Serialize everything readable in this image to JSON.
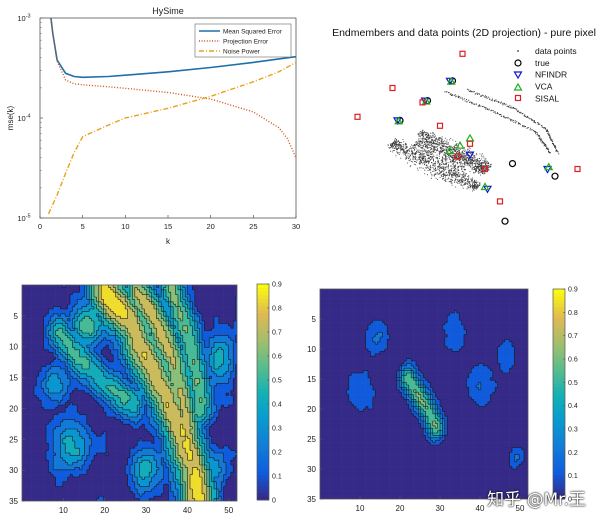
{
  "chart_data": [
    {
      "type": "line",
      "title": "HySime",
      "xlabel": "k",
      "ylabel": "mse(k)",
      "xlim": [
        0,
        30
      ],
      "ylim": [
        1e-05,
        0.001
      ],
      "yscale": "log",
      "xticks": [
        "0",
        "5",
        "10",
        "15",
        "20",
        "25",
        "30"
      ],
      "yticks": [
        {
          "base": "10",
          "exp": "-3",
          "v": 0.001
        },
        {
          "base": "10",
          "exp": "-4",
          "v": 0.0001
        },
        {
          "base": "10",
          "exp": "-5",
          "v": 1e-05
        }
      ],
      "legend_position": "top-right",
      "series": [
        {
          "name": "Mean Squared Error",
          "color": "#1f6fa8",
          "dash": "solid",
          "x": [
            1,
            1.5,
            2,
            3,
            4,
            5,
            8,
            10,
            15,
            20,
            25,
            28,
            30
          ],
          "y": [
            0.0016,
            0.0007,
            0.00038,
            0.00028,
            0.00026,
            0.000255,
            0.00026,
            0.000268,
            0.00029,
            0.00032,
            0.00036,
            0.00039,
            0.00041
          ]
        },
        {
          "name": "Projection Error",
          "color": "#d0501a",
          "dash": "dot",
          "x": [
            1,
            1.5,
            2,
            3,
            4,
            5,
            8,
            10,
            15,
            20,
            25,
            28,
            29,
            30
          ],
          "y": [
            0.0016,
            0.0007,
            0.00037,
            0.00024,
            0.00022,
            0.000215,
            0.000205,
            0.000198,
            0.00018,
            0.000155,
            0.000115,
            8e-05,
            6.2e-05,
            4e-05
          ]
        },
        {
          "name": "Noise Power",
          "color": "#e8a21a",
          "dash": "dashdot",
          "x": [
            1,
            2,
            3,
            4,
            5,
            8,
            10,
            15,
            20,
            25,
            28,
            30
          ],
          "y": [
            1.1e-05,
            1.7e-05,
            2.8e-05,
            4.5e-05,
            6.5e-05,
            8.5e-05,
            0.0001,
            0.000125,
            0.000165,
            0.00023,
            0.00029,
            0.00036
          ]
        }
      ]
    },
    {
      "type": "scatter",
      "title": "Endmembers and data points (2D projection) - pure pixel",
      "legend_position": "top-right",
      "xlim": [
        0,
        1
      ],
      "ylim": [
        0,
        1
      ],
      "data_points": {
        "name": "data points",
        "color": "#3a3a3a",
        "clusters": [
          {
            "from": [
              0.2,
              0.5
            ],
            "to": [
              0.55,
              0.25
            ],
            "width": 0.07,
            "n": 900
          },
          {
            "from": [
              0.32,
              0.56
            ],
            "to": [
              0.58,
              0.33
            ],
            "width": 0.06,
            "n": 600
          },
          {
            "from": [
              0.3,
              0.5
            ],
            "to": [
              0.6,
              0.36
            ],
            "width": 0.08,
            "n": 500
          }
        ]
      },
      "arcs": [
        {
          "points": [
            [
              0.42,
              0.78
            ],
            [
              0.6,
              0.68
            ],
            [
              0.78,
              0.56
            ],
            [
              0.84,
              0.44
            ]
          ]
        },
        {
          "points": [
            [
              0.51,
              0.79
            ],
            [
              0.68,
              0.7
            ],
            [
              0.82,
              0.58
            ],
            [
              0.87,
              0.44
            ]
          ]
        }
      ],
      "series": [
        {
          "name": "true",
          "marker": "circle",
          "color": "#000000",
          "x": [
            0.24,
            0.35,
            0.45,
            0.69,
            0.86,
            0.66
          ],
          "y": [
            0.62,
            0.73,
            0.84,
            0.38,
            0.31,
            0.06
          ]
        },
        {
          "name": "NFINDR",
          "marker": "triangle-down",
          "color": "#1515d0",
          "x": [
            0.23,
            0.34,
            0.44,
            0.59,
            0.52,
            0.83
          ],
          "y": [
            0.62,
            0.73,
            0.84,
            0.24,
            0.43,
            0.35
          ]
        },
        {
          "name": "VCA",
          "marker": "triangle-up",
          "color": "#1fb01f",
          "x": [
            0.235,
            0.345,
            0.445,
            0.52,
            0.58,
            0.835,
            0.48,
            0.44
          ],
          "y": [
            0.615,
            0.725,
            0.835,
            0.52,
            0.25,
            0.36,
            0.48,
            0.45
          ]
        },
        {
          "name": "SISAL",
          "marker": "square",
          "color": "#e02020",
          "x": [
            0.07,
            0.21,
            0.33,
            0.49,
            0.52,
            0.74,
            0.58,
            0.64,
            0.95,
            0.4,
            0.47
          ],
          "y": [
            0.64,
            0.8,
            0.72,
            0.99,
            0.49,
            0.84,
            0.35,
            0.17,
            0.35,
            0.59,
            0.42
          ]
        }
      ]
    },
    {
      "type": "heatmap",
      "subtype": "filled-contour",
      "xlim": [
        0,
        52
      ],
      "ylim": [
        0,
        35
      ],
      "xticks": [
        "10",
        "20",
        "30",
        "40",
        "50"
      ],
      "yticks": [
        "5",
        "10",
        "15",
        "20",
        "25",
        "30",
        "35"
      ],
      "colorbar": {
        "min": 0,
        "max": 0.9,
        "ticks": [
          "0",
          "0.1",
          "0.2",
          "0.3",
          "0.4",
          "0.5",
          "0.6",
          "0.7",
          "0.8",
          "0.9"
        ]
      },
      "features": [
        {
          "type": "ridge",
          "pts": [
            [
              20,
              1
            ],
            [
              26,
              6
            ],
            [
              30,
              12
            ],
            [
              34,
              17
            ],
            [
              38,
              23
            ],
            [
              41,
              29
            ],
            [
              43,
              35
            ]
          ],
          "amp": 0.82,
          "width": 3.2
        },
        {
          "type": "ridge",
          "pts": [
            [
              28,
              1
            ],
            [
              33,
              7
            ],
            [
              37,
              13
            ],
            [
              39,
              19
            ],
            [
              40,
              25
            ]
          ],
          "amp": 0.75,
          "width": 2.6
        },
        {
          "type": "ridge",
          "pts": [
            [
              36,
              1
            ],
            [
              40,
              8
            ],
            [
              42,
              14
            ],
            [
              43,
              20
            ]
          ],
          "amp": 0.6,
          "width": 2.2
        },
        {
          "type": "ridge",
          "pts": [
            [
              9,
              8
            ],
            [
              14,
              12
            ],
            [
              20,
              16
            ],
            [
              27,
              19
            ]
          ],
          "amp": 0.5,
          "width": 2.2
        },
        {
          "type": "blob",
          "c": [
            16,
            6
          ],
          "amp": 0.55,
          "r": 3
        },
        {
          "type": "blob",
          "c": [
            12,
            26
          ],
          "amp": 0.45,
          "r": 3.5
        },
        {
          "type": "blob",
          "c": [
            30,
            30
          ],
          "amp": 0.45,
          "r": 3
        },
        {
          "type": "blob",
          "c": [
            48,
            12
          ],
          "amp": 0.4,
          "r": 3
        },
        {
          "type": "blob",
          "c": [
            8,
            16
          ],
          "amp": 0.4,
          "r": 2.5
        },
        {
          "type": "blob",
          "c": [
            46,
            30
          ],
          "amp": 0.35,
          "r": 3
        }
      ],
      "noise_amp": 0.14,
      "seed": 7
    },
    {
      "type": "heatmap",
      "subtype": "filled-contour",
      "xlim": [
        0,
        52
      ],
      "ylim": [
        0,
        35
      ],
      "xticks": [
        "10",
        "20",
        "30",
        "40",
        "50"
      ],
      "yticks": [
        "5",
        "10",
        "15",
        "20",
        "25",
        "30",
        "35"
      ],
      "colorbar": {
        "min": 0,
        "max": 0.9,
        "ticks": [
          "0",
          "0.1",
          "0.2",
          "0.3",
          "0.4",
          "0.5",
          "0.6",
          "0.7",
          "0.8",
          "0.9"
        ]
      },
      "features": [
        {
          "type": "ridge",
          "pts": [
            [
              22,
              15
            ],
            [
              25,
              18
            ],
            [
              27,
              20
            ],
            [
              29,
              23
            ]
          ],
          "amp": 0.6,
          "width": 1.6
        },
        {
          "type": "blob",
          "c": [
            26.5,
            19.5
          ],
          "amp": 0.55,
          "r": 1.2
        },
        {
          "type": "blob",
          "c": [
            14,
            8
          ],
          "amp": 0.22,
          "r": 2.5
        },
        {
          "type": "blob",
          "c": [
            10,
            17
          ],
          "amp": 0.2,
          "r": 3
        },
        {
          "type": "blob",
          "c": [
            40,
            16
          ],
          "amp": 0.18,
          "r": 3
        },
        {
          "type": "blob",
          "c": [
            46,
            11
          ],
          "amp": 0.16,
          "r": 2.5
        },
        {
          "type": "blob",
          "c": [
            49,
            28
          ],
          "amp": 0.2,
          "r": 1.5
        },
        {
          "type": "blob",
          "c": [
            33,
            8
          ],
          "amp": 0.15,
          "r": 3
        }
      ],
      "noise_amp": 0.07,
      "seed": 23
    }
  ],
  "watermark": "知乎 @Mr.王"
}
